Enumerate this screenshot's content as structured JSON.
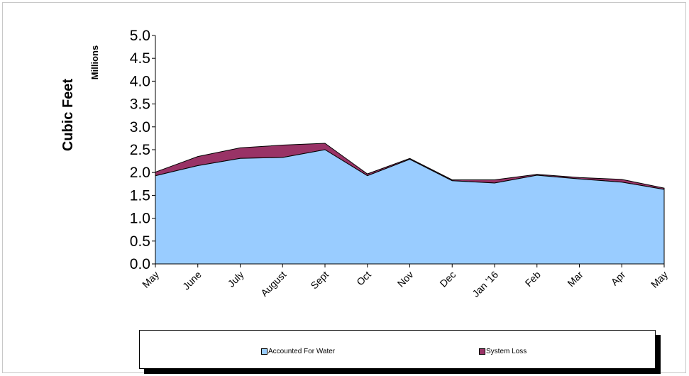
{
  "chart_data": {
    "type": "area",
    "stacked": true,
    "ylabel": "Cubic Feet",
    "yunit": "Millions",
    "ylim": [
      0,
      5
    ],
    "yticks": [
      "0.0",
      "0.5",
      "1.0",
      "1.5",
      "2.0",
      "2.5",
      "3.0",
      "3.5",
      "4.0",
      "4.5",
      "5.0"
    ],
    "categories": [
      "May",
      "June",
      "July",
      "August",
      "Sept",
      "Oct",
      "Nov",
      "Dec",
      "Jan '16",
      "Feb",
      "Mar",
      "Apr",
      "May"
    ],
    "series": [
      {
        "name": "Accounted For Water",
        "color": "#99ccff",
        "values": [
          1.93,
          2.15,
          2.31,
          2.33,
          2.5,
          1.93,
          2.29,
          1.82,
          1.77,
          1.94,
          1.86,
          1.79,
          1.63
        ]
      },
      {
        "name": "System Loss",
        "color": "#993366",
        "values": [
          0.08,
          0.2,
          0.23,
          0.27,
          0.14,
          0.04,
          0.02,
          0.02,
          0.07,
          0.02,
          0.03,
          0.06,
          0.03
        ]
      }
    ],
    "grid": false,
    "legend": "bottom"
  }
}
